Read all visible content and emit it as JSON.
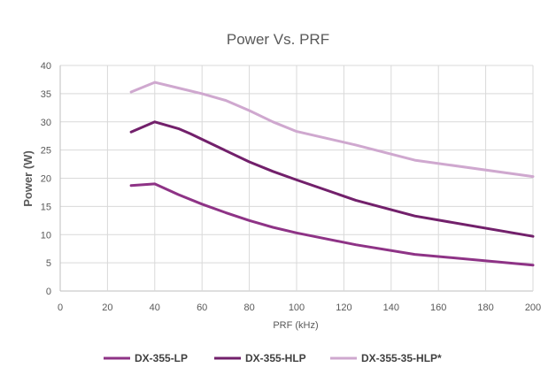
{
  "chart_data": {
    "type": "line",
    "title": "Power Vs. PRF",
    "xlabel": "PRF (kHz)",
    "ylabel": "Power (W)",
    "xlim": [
      0,
      200
    ],
    "ylim": [
      0,
      40
    ],
    "xticks": [
      0,
      20,
      40,
      60,
      80,
      100,
      120,
      140,
      160,
      180,
      200
    ],
    "yticks": [
      0,
      5,
      10,
      15,
      20,
      25,
      30,
      35,
      40
    ],
    "grid": true,
    "legend_position": "bottom",
    "series": [
      {
        "name": "DX-355-LP",
        "color": "#8e3386",
        "x": [
          30,
          40,
          50,
          60,
          70,
          80,
          90,
          100,
          125,
          150,
          200
        ],
        "y": [
          18.7,
          19.0,
          17.1,
          15.4,
          13.9,
          12.5,
          11.3,
          10.3,
          8.2,
          6.5,
          4.6
        ]
      },
      {
        "name": "DX-355-HLP",
        "color": "#72206b",
        "x": [
          30,
          40,
          50,
          55,
          60,
          70,
          80,
          90,
          100,
          125,
          150,
          200
        ],
        "y": [
          28.2,
          30.0,
          28.8,
          27.9,
          26.9,
          24.9,
          22.9,
          21.2,
          19.7,
          16.1,
          13.3,
          9.7
        ]
      },
      {
        "name": "DX-355-35-HLP*",
        "color": "#cfa8cf",
        "x": [
          30,
          40,
          50,
          60,
          70,
          80,
          90,
          100,
          125,
          150,
          200
        ],
        "y": [
          35.3,
          37.0,
          36.0,
          35.0,
          33.8,
          32.0,
          30.0,
          28.3,
          25.9,
          23.2,
          20.3
        ]
      }
    ]
  }
}
